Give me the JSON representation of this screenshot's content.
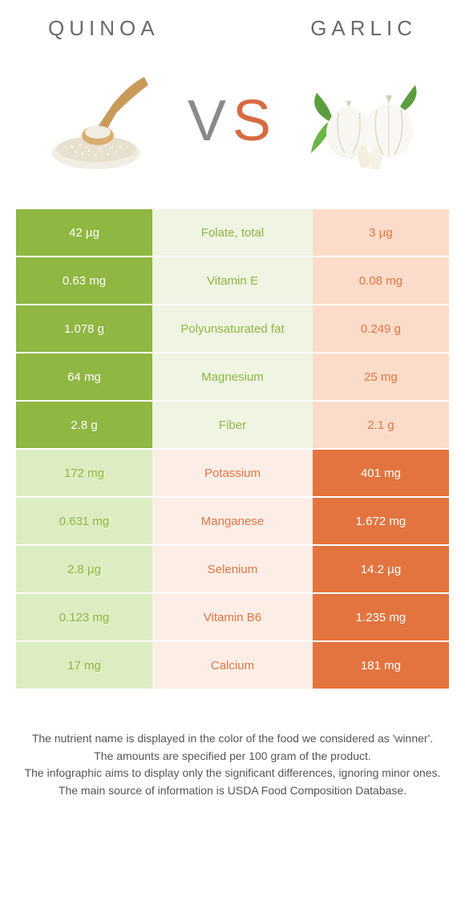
{
  "titles": {
    "left": "QUINOA",
    "right": "GARLIC",
    "vs_v": "V",
    "vs_s": "S"
  },
  "colors": {
    "left_food": "#8fb742",
    "right_food": "#e3743f",
    "left_cell_bg": "#8fb742",
    "right_cell_bg": "#e3743f",
    "mid_bg_a": "#eff4e3",
    "mid_bg_b": "#fceee7",
    "left_bg_dim": "#ddedc2",
    "right_bg_dim": "#fbdcca",
    "left_text_dim": "#8fb742",
    "right_text_dim": "#e3743f"
  },
  "rows": [
    {
      "label": "Folate, total",
      "left": "42 µg",
      "right": "3 µg",
      "winner": "left"
    },
    {
      "label": "Vitamin E",
      "left": "0.63 mg",
      "right": "0.08 mg",
      "winner": "left"
    },
    {
      "label": "Polyunsaturated fat",
      "left": "1.078 g",
      "right": "0.249 g",
      "winner": "left"
    },
    {
      "label": "Magnesium",
      "left": "64 mg",
      "right": "25 mg",
      "winner": "left"
    },
    {
      "label": "Fiber",
      "left": "2.8 g",
      "right": "2.1 g",
      "winner": "left"
    },
    {
      "label": "Potassium",
      "left": "172 mg",
      "right": "401 mg",
      "winner": "right"
    },
    {
      "label": "Manganese",
      "left": "0.631 mg",
      "right": "1.672 mg",
      "winner": "right"
    },
    {
      "label": "Selenium",
      "left": "2.8 µg",
      "right": "14.2 µg",
      "winner": "right"
    },
    {
      "label": "Vitamin B6",
      "left": "0.123 mg",
      "right": "1.235 mg",
      "winner": "right"
    },
    {
      "label": "Calcium",
      "left": "17 mg",
      "right": "181 mg",
      "winner": "right"
    }
  ],
  "footer": {
    "l1": "The nutrient name is displayed in the color of the food we considered as 'winner'.",
    "l2": "The amounts are specified per 100 gram of the product.",
    "l3": "The infographic aims to display only the significant differences, ignoring minor ones.",
    "l4": "The main source of information is USDA Food Composition Database."
  }
}
